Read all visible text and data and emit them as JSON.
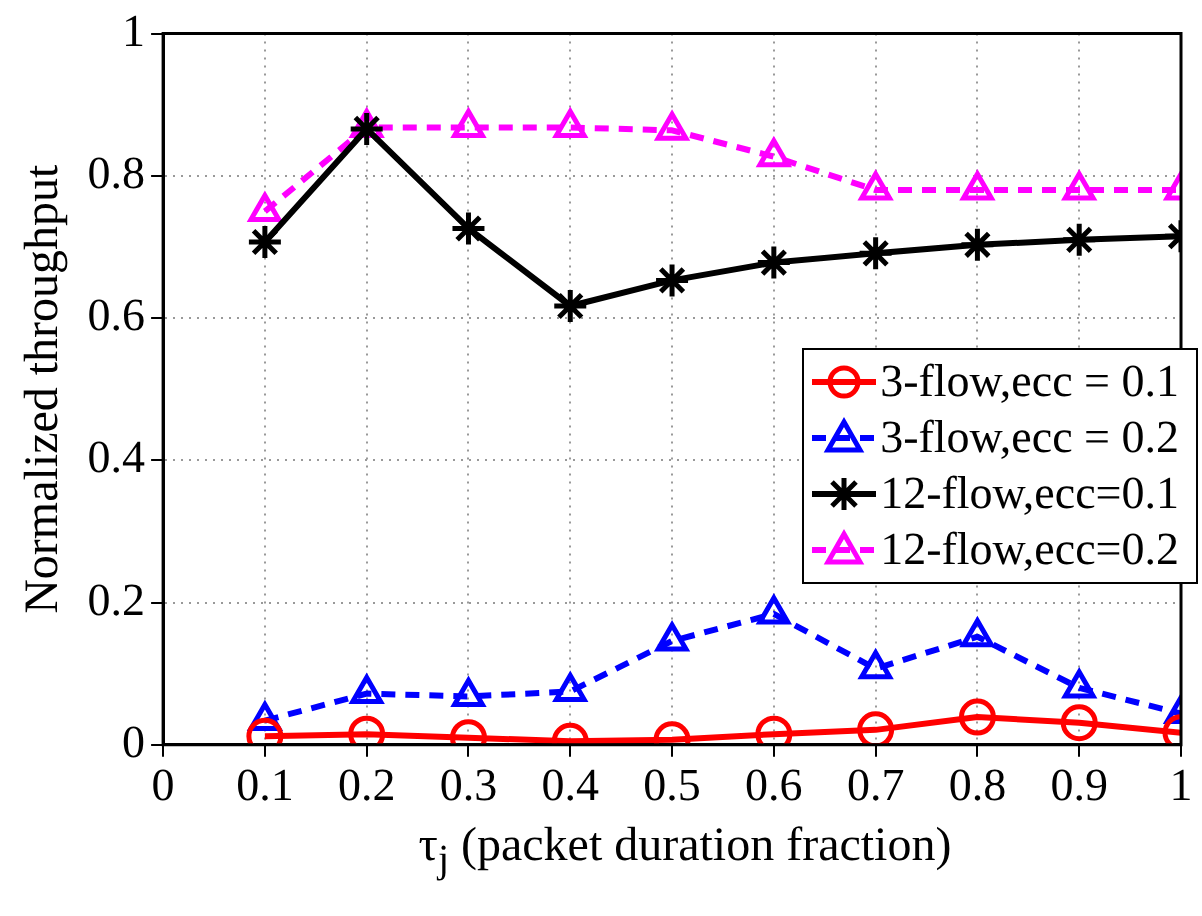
{
  "chart_data": {
    "type": "line",
    "xlabel": "τ$_{j}$ (packet duration fraction)",
    "ylabel": "Normalized throughput",
    "x": [
      0.1,
      0.2,
      0.3,
      0.4,
      0.5,
      0.6,
      0.7,
      0.8,
      0.9,
      1
    ],
    "xlim": [
      0,
      1
    ],
    "xticks": [
      0,
      0.1,
      0.2,
      0.3,
      0.4,
      0.5,
      0.6,
      0.7,
      0.8,
      0.9,
      1
    ],
    "ylim": [
      0,
      1
    ],
    "yticks": [
      0,
      0.2,
      0.4,
      0.6,
      0.8,
      1
    ],
    "grid": true,
    "legend": "right",
    "series": [
      {
        "name": "3-flow,ecc = 0.1",
        "color": "#ff0000",
        "marker": "circle",
        "line_style": "solid",
        "values": [
          0.012,
          0.015,
          0.01,
          0.005,
          0.007,
          0.015,
          0.021,
          0.039,
          0.031,
          0.017
        ]
      },
      {
        "name": "3-flow,ecc = 0.2",
        "color": "#0000ff",
        "marker": "triangle",
        "line_style": "dashed",
        "values": [
          0.034,
          0.072,
          0.068,
          0.075,
          0.146,
          0.184,
          0.107,
          0.152,
          0.08,
          0.044
        ]
      },
      {
        "name": "12-flow,ecc=0.1",
        "color": "#000000",
        "marker": "cross",
        "line_style": "solid",
        "values": [
          0.707,
          0.866,
          0.726,
          0.617,
          0.653,
          0.678,
          0.691,
          0.703,
          0.71,
          0.715
        ]
      },
      {
        "name": "12-flow,ecc=0.2",
        "color": "#ff00ff",
        "marker": "triangle",
        "line_style": "dashed",
        "values": [
          0.75,
          0.868,
          0.868,
          0.868,
          0.864,
          0.827,
          0.78,
          0.78,
          0.78,
          0.78
        ]
      }
    ]
  }
}
